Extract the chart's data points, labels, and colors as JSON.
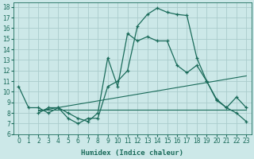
{
  "title": "",
  "xlabel": "Humidex (Indice chaleur)",
  "background_color": "#cce8e8",
  "grid_color": "#aacccc",
  "line_color": "#1a6b5a",
  "xlim": [
    -0.5,
    23.5
  ],
  "ylim": [
    6,
    18.4
  ],
  "yticks": [
    6,
    7,
    8,
    9,
    10,
    11,
    12,
    13,
    14,
    15,
    16,
    17,
    18
  ],
  "xticks": [
    0,
    1,
    2,
    3,
    4,
    5,
    6,
    7,
    8,
    9,
    10,
    11,
    12,
    13,
    14,
    15,
    16,
    17,
    18,
    19,
    20,
    21,
    22,
    23
  ],
  "curve1_x": [
    0,
    1,
    2,
    3,
    4,
    5,
    6,
    7,
    8,
    9,
    10,
    11,
    12,
    13,
    14,
    15,
    16,
    17,
    18,
    19,
    20,
    21,
    22,
    23
  ],
  "curve1_y": [
    10.5,
    8.5,
    8.5,
    8.0,
    8.5,
    7.5,
    7.0,
    7.5,
    7.5,
    10.5,
    11.0,
    12.0,
    16.2,
    17.3,
    17.9,
    17.5,
    17.3,
    17.2,
    13.2,
    11.0,
    9.3,
    8.5,
    9.5,
    8.5
  ],
  "curve2_x": [
    2,
    3,
    4,
    5,
    6,
    7,
    8,
    9,
    10,
    11,
    12,
    13,
    14,
    15,
    16,
    17,
    18,
    19,
    20,
    21,
    22,
    23
  ],
  "curve2_y": [
    8.0,
    8.5,
    8.5,
    8.0,
    7.5,
    7.2,
    8.0,
    13.2,
    10.5,
    15.5,
    14.8,
    15.2,
    14.8,
    14.8,
    12.5,
    11.8,
    12.5,
    11.0,
    9.2,
    8.5,
    8.0,
    7.2
  ],
  "curve3_x": [
    2,
    23
  ],
  "curve3_y": [
    8.3,
    8.3
  ],
  "curve4_x": [
    2,
    23
  ],
  "curve4_y": [
    8.2,
    11.5
  ]
}
